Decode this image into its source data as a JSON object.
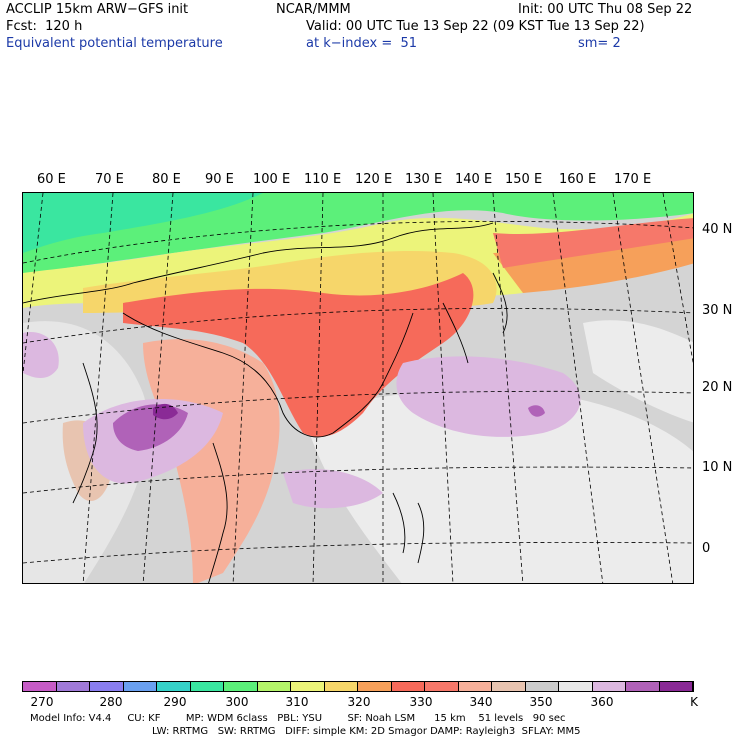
{
  "header": {
    "model": "ACCLIP 15km ARW−GFS init",
    "org": "NCAR/MMM",
    "init": "Init: 00 UTC Thu 08 Sep 22",
    "fcst": "Fcst:  120 h",
    "valid": "Valid: 00 UTC Tue 13 Sep 22 (09 KST Tue 13 Sep 22)",
    "field": "Equivalent potential temperature",
    "level": "at k−index =  51",
    "smooth": "sm= 2"
  },
  "map": {
    "lon_labels": [
      "60 E",
      "70 E",
      "80 E",
      "90 E",
      "100 E",
      "110 E",
      "120 E",
      "130 E",
      "140 E",
      "150 E",
      "160 E",
      "170 E"
    ],
    "lat_labels": [
      "40 N",
      "30 N",
      "20 N",
      "10 N",
      "0"
    ]
  },
  "colorbar": {
    "unit": "K",
    "colors": [
      "#c65cc6",
      "#a07ad8",
      "#8a7ef0",
      "#6aa0f0",
      "#36d2c8",
      "#3ae6a0",
      "#5cf07a",
      "#b4f46a",
      "#ecf47a",
      "#f6d66a",
      "#f6a05a",
      "#f66a5a",
      "#f6786a",
      "#f6b09a",
      "#e8c4b0",
      "#cccccc",
      "#e8e8e8",
      "#dcb8e0",
      "#b062b8",
      "#8a2a96"
    ],
    "labels": [
      "270",
      "280",
      "290",
      "300",
      "310",
      "320",
      "330",
      "340",
      "350",
      "360"
    ]
  },
  "footer": {
    "line1": "Model Info: V4.4     CU: KF        MP: WDM 6class   PBL: YSU        SF: Noah LSM      15 km    51 levels   90 sec",
    "line2": "LW: RRTMG   SW: RRTMG   DIFF: simple KM: 2D Smagor DAMP: Rayleigh3  SFLAY: MM5"
  }
}
